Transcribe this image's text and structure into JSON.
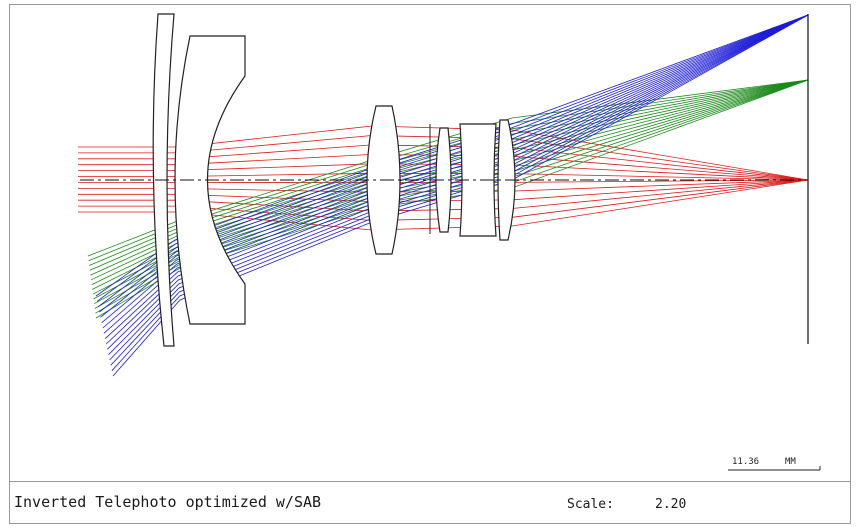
{
  "title": "Inverted Telephoto optimized w/SAB",
  "scale": {
    "label": "Scale:",
    "value": "2.20"
  },
  "scale_bar": {
    "value": "11.36",
    "unit": "MM"
  },
  "colors": {
    "on_axis_rays": "#e01818",
    "mid_field_rays": "#1a8a1a",
    "edge_field_rays": "#1c1cd8",
    "lens_outline": "#222222",
    "axis_line": "#111111"
  }
}
